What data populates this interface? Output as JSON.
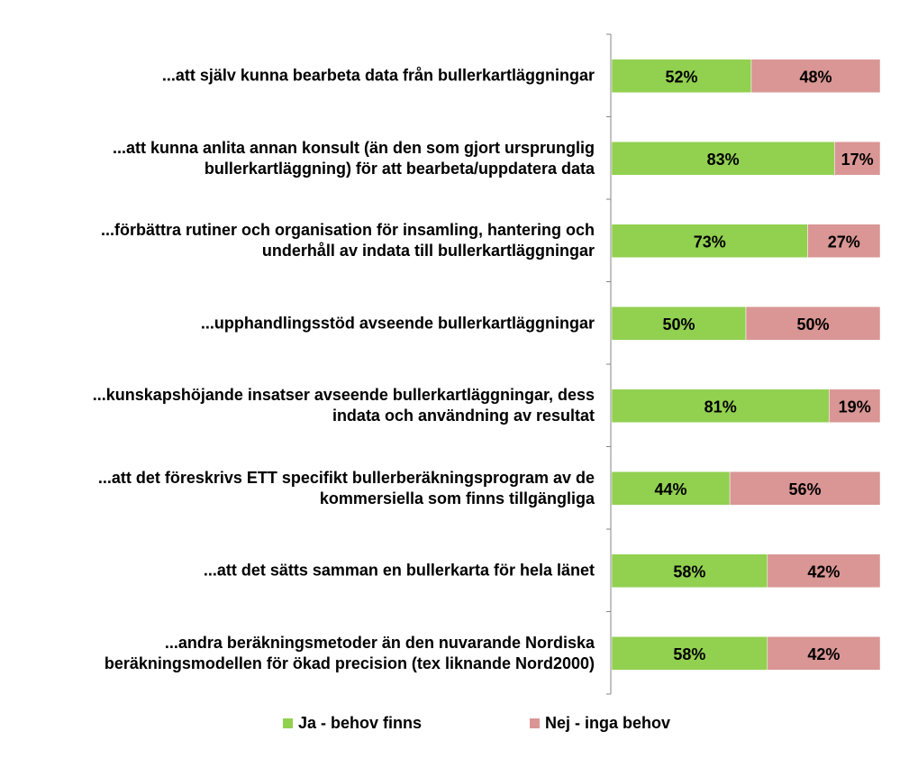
{
  "chart_data": {
    "type": "bar",
    "orientation": "horizontal",
    "stacked": true,
    "percent": true,
    "categories": [
      "...att själv kunna bearbeta data från bullerkartläggningar",
      "...att kunna anlita annan konsult (än den som gjort ursprunglig bullerkartläggning) för att bearbeta/uppdatera data",
      "...förbättra rutiner och organisation för insamling, hantering och underhåll av indata till bullerkartläggningar",
      "...upphandlingsstöd avseende bullerkartläggningar",
      "...kunskapshöjande insatser avseende bullerkartläggningar, dess indata och användning av resultat",
      "...att det föreskrivs ETT specifikt bullerberäkningsprogram av de kommersiella som finns tillgängliga",
      "...att det sätts samman en bullerkarta för hela länet",
      "...andra beräkningsmetoder än den nuvarande Nordiska beräkningsmodellen för ökad precision (tex liknande Nord2000)"
    ],
    "category_lines": [
      [
        "...att själv kunna bearbeta data från bullerkartläggningar"
      ],
      [
        "...att kunna anlita annan konsult (än den som gjort ursprunglig",
        "bullerkartläggning) för att bearbeta/uppdatera data"
      ],
      [
        "...förbättra rutiner och organisation för insamling, hantering och",
        "underhåll av indata till bullerkartläggningar"
      ],
      [
        "...upphandlingsstöd avseende bullerkartläggningar"
      ],
      [
        "...kunskapshöjande insatser avseende bullerkartläggningar, dess",
        "indata och användning av resultat"
      ],
      [
        "...att det föreskrivs ETT specifikt bullerberäkningsprogram av de",
        "kommersiella som finns tillgängliga"
      ],
      [
        "...att det sätts samman en bullerkarta för hela länet"
      ],
      [
        "...andra beräkningsmetoder än den nuvarande Nordiska",
        "beräkningsmodellen för ökad precision (tex liknande Nord2000)"
      ]
    ],
    "series": [
      {
        "name": "Ja - behov finns",
        "color": "#92D050",
        "values": [
          52,
          83,
          73,
          50,
          81,
          44,
          58,
          58
        ],
        "labels": [
          "52%",
          "83%",
          "73%",
          "50%",
          "81%",
          "44%",
          "58%",
          "58%"
        ]
      },
      {
        "name": "Nej - inga behov",
        "color": "#D99694",
        "values": [
          48,
          17,
          27,
          50,
          19,
          56,
          42,
          42
        ],
        "labels": [
          "48%",
          "17%",
          "27%",
          "50%",
          "19%",
          "56%",
          "42%",
          "42%"
        ]
      }
    ],
    "xlim": [
      0,
      100
    ],
    "legend_position": "bottom",
    "grid": false
  }
}
